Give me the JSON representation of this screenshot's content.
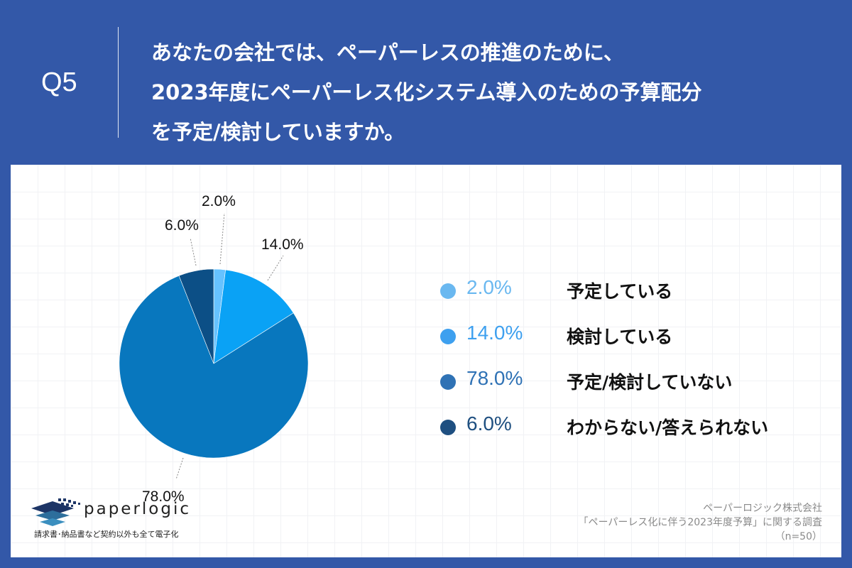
{
  "header": {
    "question_number": "Q5",
    "title_lines": [
      "あなたの会社では、ペーパーレスの推進のために、",
      "2023年度にペーパーレス化システム導入のための予算配分",
      "を予定/検討していますか。"
    ]
  },
  "colors": {
    "background": "#3358a8",
    "panel": "#ffffff",
    "slice_planned": "#66c2ff",
    "slice_considering": "#0aa2f5",
    "slice_not": "#0877be",
    "slice_unknown": "#0c4f86",
    "legend_planned": "#6ab8f0",
    "legend_considering": "#3ea0ef",
    "legend_not": "#2f72b5",
    "legend_unknown": "#1e4f80"
  },
  "pie_labels": {
    "planned": "2.0%",
    "considering": "14.0%",
    "not": "78.0%",
    "unknown": "6.0%"
  },
  "legend": [
    {
      "pct": "2.0%",
      "label": "予定している"
    },
    {
      "pct": "14.0%",
      "label": "検討している"
    },
    {
      "pct": "78.0%",
      "label": "予定/検討していない"
    },
    {
      "pct": "6.0%",
      "label": "わからない/答えられない"
    }
  ],
  "logo": {
    "name": "paperlogic",
    "tagline": "請求書･納品書など契約以外も全て電子化"
  },
  "source": {
    "company": "ペーパーロジック株式会社",
    "survey": "「ペーパーレス化に伴う2023年度予算」に関する調査",
    "sample": "（n=50）"
  },
  "chart_data": {
    "type": "pie",
    "title": "あなたの会社では、ペーパーレスの推進のために、2023年度にペーパーレス化システム導入のための予算配分を予定/検討していますか。",
    "categories": [
      "予定している",
      "検討している",
      "予定/検討していない",
      "わからない/答えられない"
    ],
    "values": [
      2.0,
      14.0,
      78.0,
      6.0
    ],
    "unit": "%",
    "colors": [
      "#66c2ff",
      "#0aa2f5",
      "#0877be",
      "#0c4f86"
    ],
    "start_angle": "12 o'clock, clockwise",
    "legend_position": "right",
    "n": 50
  }
}
